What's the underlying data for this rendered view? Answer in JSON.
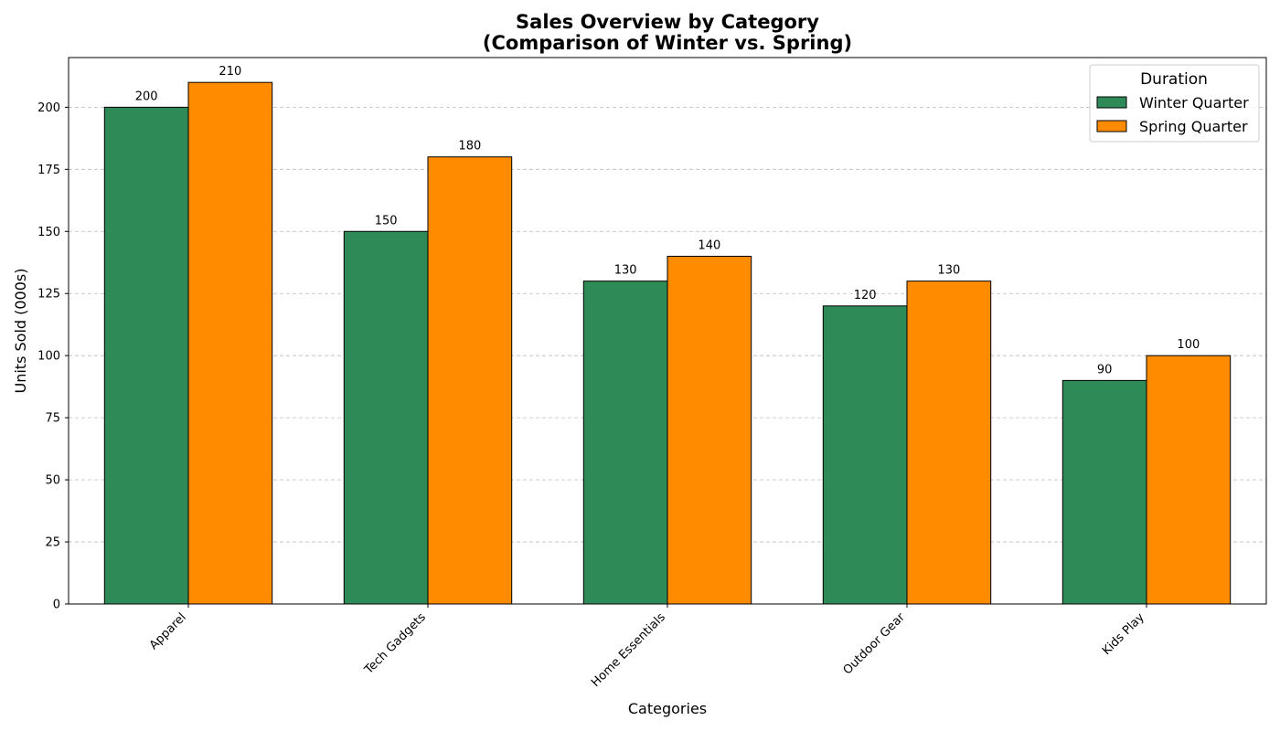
{
  "chart_data": {
    "type": "bar",
    "title": "Sales Overview by Category",
    "subtitle": "(Comparison of Winter vs. Spring)",
    "xlabel": "Categories",
    "ylabel": "Units Sold (000s)",
    "categories": [
      "Apparel",
      "Tech Gadgets",
      "Home Essentials",
      "Outdoor Gear",
      "Kids Play"
    ],
    "series": [
      {
        "name": "Winter Quarter",
        "values": [
          200,
          150,
          130,
          120,
          90
        ],
        "color": "#2e8b57"
      },
      {
        "name": "Spring Quarter",
        "values": [
          210,
          180,
          140,
          130,
          100
        ],
        "color": "#ff8c00"
      }
    ],
    "ylim": [
      0,
      220
    ],
    "yticks": [
      0,
      25,
      50,
      75,
      100,
      125,
      150,
      175,
      200
    ],
    "grid": "horizontal dashed",
    "legend": {
      "title": "Duration",
      "placement": "top-right"
    },
    "data_labels": true,
    "x_tick_rotation": "45 degrees"
  }
}
